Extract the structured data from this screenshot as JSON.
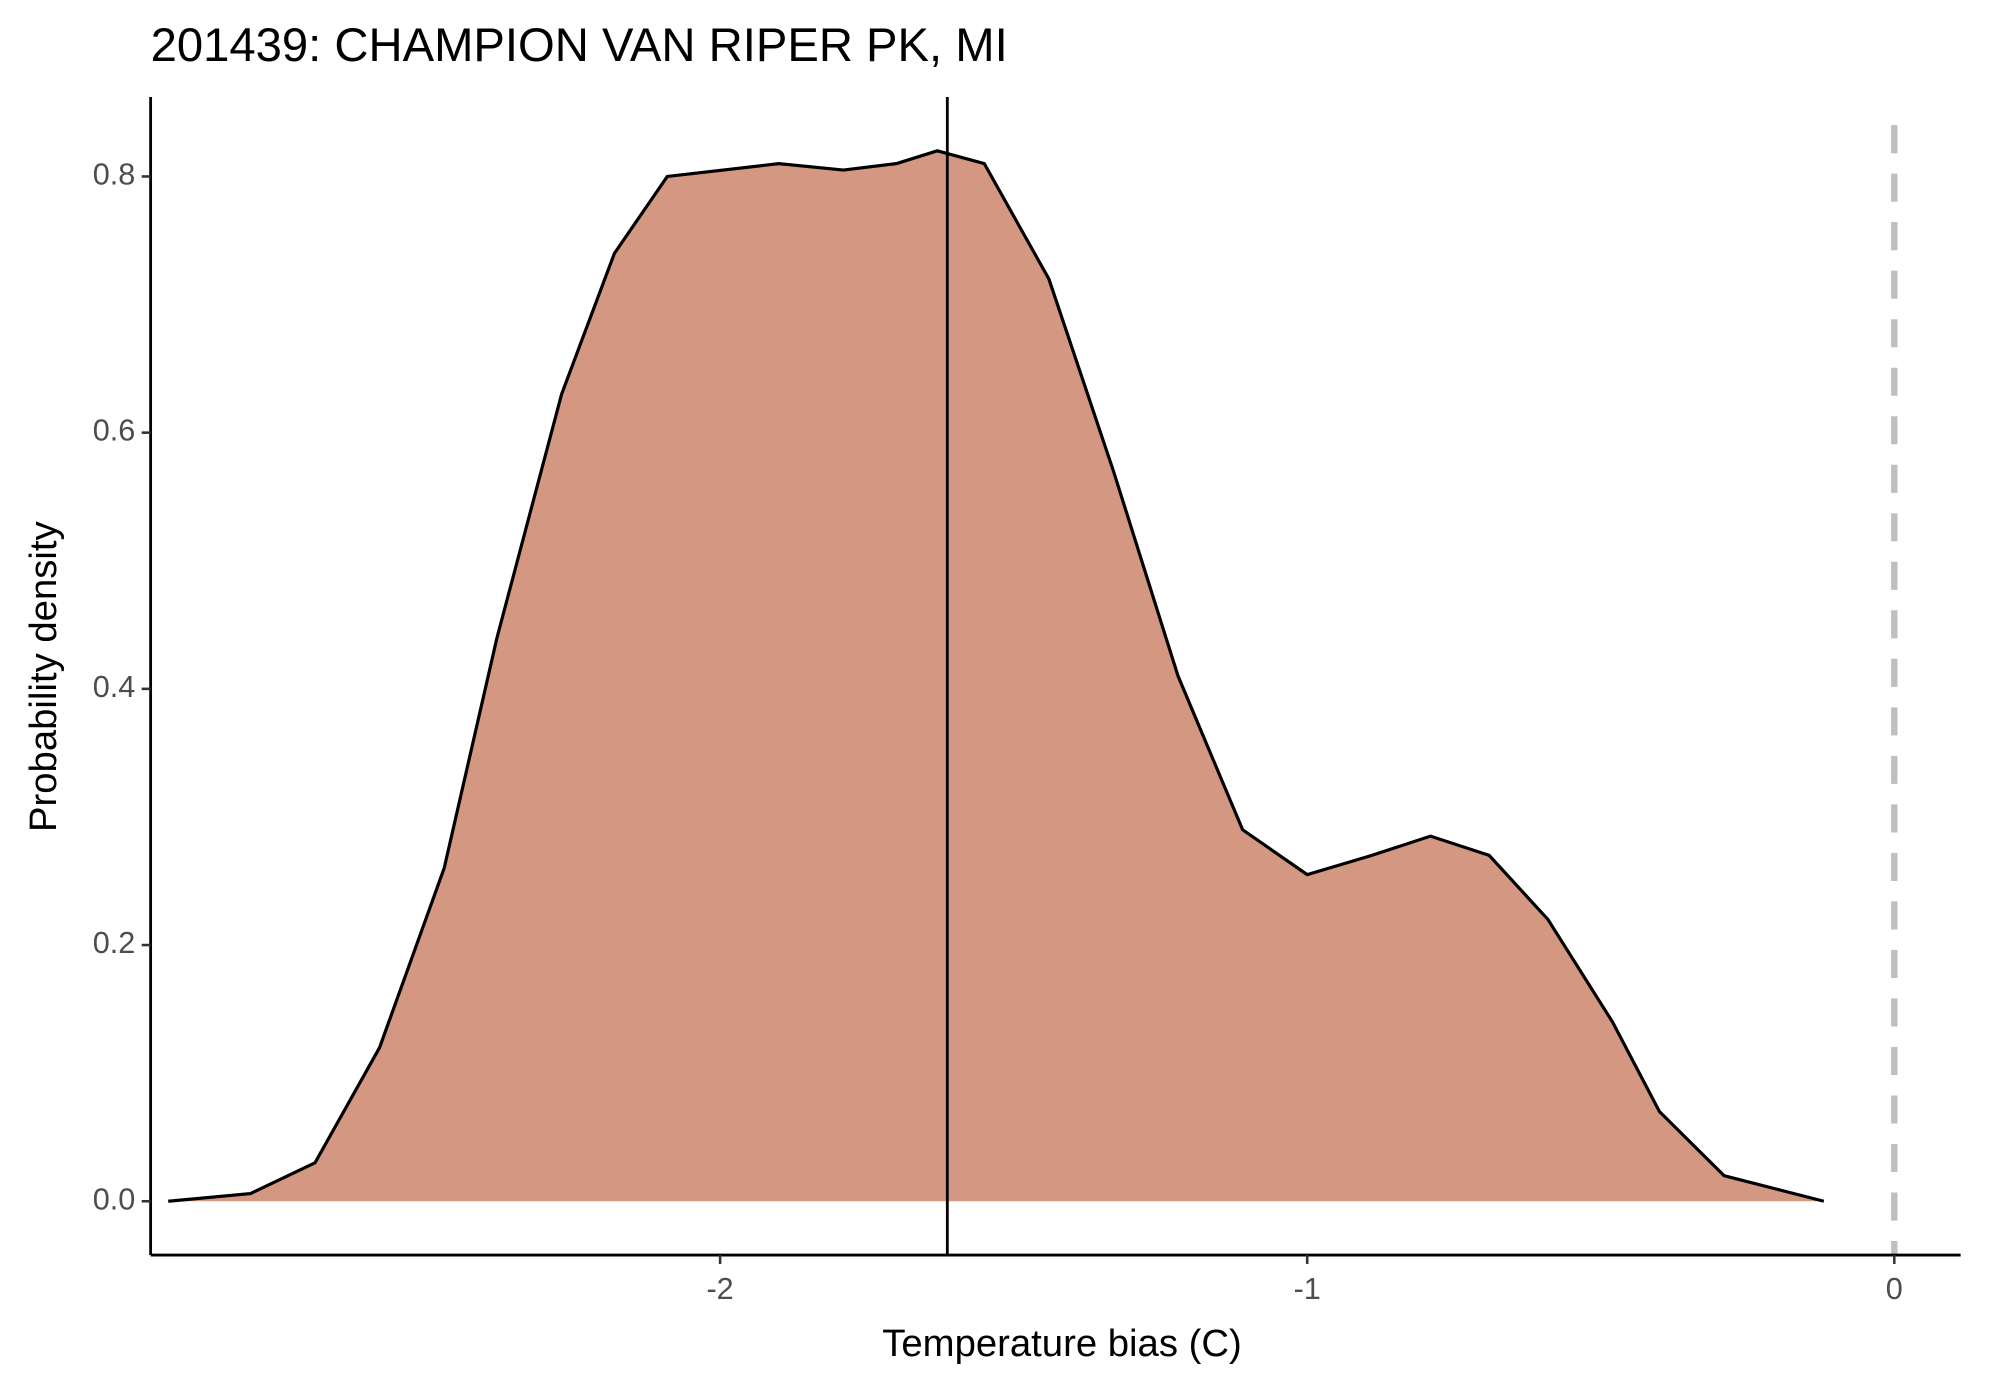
{
  "chart_data": {
    "type": "density",
    "title": "201439: CHAMPION VAN RIPER PK, MI",
    "xlabel": "Temperature bias (C)",
    "ylabel": "Probability density",
    "x": [
      -2.94,
      -2.8,
      -2.69,
      -2.58,
      -2.47,
      -2.38,
      -2.27,
      -2.18,
      -2.09,
      -1.9,
      -1.79,
      -1.7,
      -1.63,
      -1.55,
      -1.44,
      -1.33,
      -1.22,
      -1.11,
      -1.0,
      -0.89,
      -0.79,
      -0.69,
      -0.59,
      -0.48,
      -0.4,
      -0.29,
      -0.12
    ],
    "values": [
      0,
      0.006,
      0.03,
      0.12,
      0.26,
      0.44,
      0.63,
      0.74,
      0.8,
      0.81,
      0.805,
      0.81,
      0.82,
      0.81,
      0.72,
      0.57,
      0.41,
      0.29,
      0.255,
      0.27,
      0.285,
      0.27,
      0.22,
      0.14,
      0.07,
      0.02,
      0
    ],
    "color": "#d49882",
    "mean_line": -1.613,
    "reference_line": 0,
    "reference_color": "#bfbfbf",
    "xlim": [
      -2.97,
      0.113
    ],
    "ylim": [
      -0.042,
      0.862
    ],
    "xticks": [
      -2,
      -1,
      0
    ],
    "yticks": [
      {
        "value": 0,
        "label": "0.0"
      },
      0.2,
      0.4,
      0.6,
      0.8
    ]
  }
}
